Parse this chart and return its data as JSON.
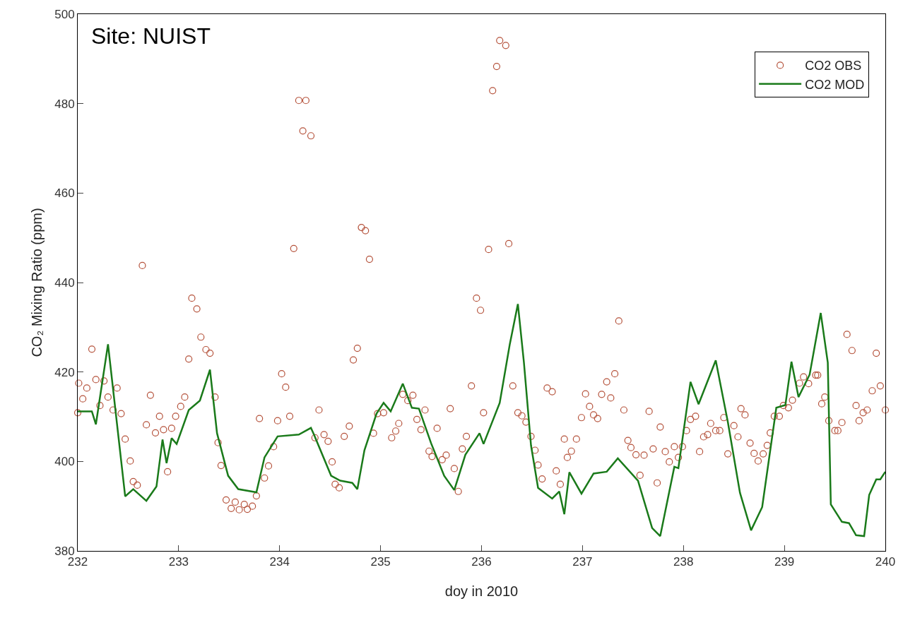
{
  "chart_data": {
    "type": "scatter",
    "xlabel": "doy in 2010",
    "ylabel": "CO₂ Mixing Ratio (ppm)",
    "xlim": [
      232,
      240
    ],
    "ylim": [
      380,
      500
    ],
    "xticks": [
      232,
      233,
      234,
      235,
      236,
      237,
      238,
      239,
      240
    ],
    "yticks": [
      380,
      400,
      420,
      440,
      460,
      480,
      500
    ],
    "legend": "top right",
    "annotations": [
      "Site: NUIST"
    ],
    "series": [
      {
        "name": "CO2 OBS",
        "marker": "circle",
        "color": "#b5523b",
        "x": [
          232.0,
          232.01,
          232.05,
          232.09,
          232.14,
          232.18,
          232.22,
          232.26,
          232.3,
          232.35,
          232.39,
          232.43,
          232.47,
          232.52,
          232.55,
          232.59,
          232.64,
          232.68,
          232.72,
          232.77,
          232.81,
          232.85,
          232.89,
          232.93,
          232.97,
          233.02,
          233.06,
          233.1,
          233.13,
          233.18,
          233.22,
          233.27,
          233.31,
          233.36,
          233.39,
          233.42,
          233.47,
          233.52,
          233.56,
          233.6,
          233.65,
          233.68,
          233.73,
          233.77,
          233.8,
          233.85,
          233.89,
          233.94,
          233.98,
          234.02,
          234.06,
          234.1,
          234.14,
          234.19,
          234.26,
          234.23,
          234.31,
          234.35,
          234.39,
          234.44,
          234.48,
          234.52,
          234.55,
          234.59,
          234.64,
          234.69,
          234.73,
          234.77,
          234.81,
          234.85,
          234.89,
          234.93,
          234.97,
          235.03,
          235.11,
          235.15,
          235.18,
          235.22,
          235.27,
          235.32,
          235.36,
          235.4,
          235.44,
          235.48,
          235.51,
          235.56,
          235.61,
          235.65,
          235.69,
          235.73,
          235.77,
          235.81,
          235.85,
          235.9,
          235.95,
          235.99,
          236.02,
          236.07,
          236.11,
          236.15,
          236.18,
          236.24,
          236.27,
          236.31,
          236.36,
          236.4,
          236.44,
          236.49,
          236.53,
          236.56,
          236.6,
          236.65,
          236.7,
          236.74,
          236.78,
          236.82,
          236.85,
          236.89,
          236.94,
          236.99,
          237.03,
          237.07,
          237.11,
          237.15,
          237.19,
          237.24,
          237.28,
          237.32,
          237.36,
          237.41,
          237.45,
          237.48,
          237.53,
          237.57,
          237.61,
          237.66,
          237.7,
          237.74,
          237.77,
          237.82,
          237.86,
          237.91,
          237.95,
          237.99,
          238.03,
          238.07,
          238.12,
          238.16,
          238.2,
          238.24,
          238.27,
          238.32,
          238.36,
          238.4,
          238.44,
          238.5,
          238.54,
          238.57,
          238.61,
          238.66,
          238.7,
          238.74,
          238.79,
          238.83,
          238.86,
          238.9,
          238.95,
          238.99,
          239.04,
          239.08,
          239.15,
          239.19,
          239.24,
          239.31,
          239.33,
          239.37,
          239.4,
          239.44,
          239.5,
          239.53,
          239.57,
          239.62,
          239.67,
          239.71,
          239.74,
          239.78,
          239.82,
          239.87,
          239.91,
          239.95,
          240.0
        ],
        "values": [
          410.9,
          417.5,
          414.0,
          416.4,
          425.1,
          418.3,
          412.5,
          418.0,
          414.4,
          411.5,
          416.4,
          410.7,
          405.0,
          400.1,
          395.5,
          394.7,
          443.8,
          408.2,
          414.8,
          406.4,
          410.1,
          407.1,
          397.7,
          407.4,
          410.1,
          412.3,
          414.4,
          422.9,
          436.5,
          434.1,
          427.8,
          425.0,
          424.2,
          414.4,
          404.2,
          399.1,
          391.4,
          389.5,
          390.9,
          389.2,
          390.4,
          389.3,
          390.0,
          392.3,
          409.6,
          396.3,
          399.0,
          403.3,
          409.1,
          419.6,
          416.6,
          410.1,
          447.6,
          480.7,
          480.7,
          473.9,
          472.8,
          405.3,
          411.5,
          406.0,
          404.5,
          399.9,
          394.9,
          394.1,
          405.6,
          407.9,
          422.7,
          425.3,
          452.3,
          451.6,
          445.2,
          406.3,
          410.7,
          410.9,
          405.3,
          406.8,
          408.5,
          415.0,
          413.6,
          414.8,
          409.4,
          407.1,
          411.5,
          402.3,
          401.1,
          407.4,
          400.4,
          401.4,
          411.8,
          398.4,
          393.3,
          402.8,
          405.6,
          416.9,
          436.5,
          433.8,
          410.9,
          447.4,
          482.9,
          488.3,
          494.1,
          493.0,
          448.7,
          416.9,
          410.9,
          410.2,
          408.8,
          405.6,
          402.5,
          399.2,
          396.1,
          416.4,
          415.6,
          397.9,
          394.9,
          405.0,
          400.9,
          402.3,
          405.0,
          409.8,
          415.1,
          412.3,
          410.4,
          409.6,
          415.0,
          417.8,
          414.2,
          419.6,
          431.4,
          411.5,
          404.7,
          403.1,
          401.5,
          396.9,
          401.4,
          411.2,
          402.8,
          395.2,
          407.7,
          402.2,
          399.9,
          403.3,
          400.9,
          403.3,
          406.9,
          409.4,
          410.1,
          402.2,
          405.5,
          406.0,
          408.5,
          406.9,
          406.9,
          409.8,
          401.7,
          408.0,
          405.5,
          411.8,
          410.4,
          404.1,
          401.8,
          400.1,
          401.7,
          403.6,
          406.4,
          410.1,
          410.1,
          412.5,
          412.0,
          413.7,
          417.5,
          418.9,
          417.4,
          419.3,
          419.3,
          412.9,
          414.4,
          409.1,
          406.9,
          406.9,
          408.7,
          428.4,
          424.8,
          412.5,
          409.1,
          410.9,
          411.5,
          415.8,
          424.2,
          416.9,
          411.5
        ]
      },
      {
        "name": "CO2 MOD",
        "type": "line",
        "marker": "none",
        "line_style": "solid",
        "color": "#1a7a1a",
        "x": [
          232.0,
          232.14,
          232.18,
          232.3,
          232.47,
          232.55,
          232.68,
          232.78,
          232.84,
          232.88,
          232.93,
          232.98,
          233.1,
          233.21,
          233.31,
          233.38,
          233.49,
          233.59,
          233.77,
          233.85,
          233.98,
          234.19,
          234.31,
          234.34,
          234.51,
          234.6,
          234.72,
          234.77,
          234.84,
          234.96,
          235.03,
          235.1,
          235.22,
          235.31,
          235.38,
          235.5,
          235.63,
          235.73,
          235.84,
          235.98,
          236.02,
          236.18,
          236.28,
          236.36,
          236.42,
          236.49,
          236.56,
          236.7,
          236.77,
          236.82,
          236.87,
          236.99,
          237.11,
          237.24,
          237.35,
          237.55,
          237.69,
          237.77,
          237.91,
          237.95,
          238.07,
          238.15,
          238.32,
          238.44,
          238.56,
          238.67,
          238.78,
          238.92,
          239.01,
          239.07,
          239.14,
          239.25,
          239.36,
          239.43,
          239.46,
          239.57,
          239.64,
          239.71,
          239.79,
          239.84,
          239.91,
          239.95,
          240.0
        ],
        "values": [
          411.2,
          411.2,
          408.3,
          426.2,
          392.2,
          393.8,
          391.2,
          394.4,
          404.9,
          399.6,
          405.2,
          403.9,
          411.5,
          413.6,
          420.5,
          406.3,
          396.8,
          393.8,
          393.1,
          400.9,
          405.6,
          406.0,
          407.5,
          406.0,
          396.8,
          395.7,
          395.2,
          393.8,
          402.5,
          410.7,
          413.1,
          411.2,
          417.4,
          412.0,
          411.8,
          404.1,
          396.8,
          393.6,
          401.5,
          406.3,
          403.9,
          413.1,
          426.2,
          435.2,
          422.1,
          403.6,
          394.1,
          391.7,
          393.3,
          388.2,
          397.6,
          392.8,
          397.3,
          397.7,
          400.7,
          395.7,
          385.1,
          383.3,
          398.8,
          398.5,
          417.8,
          412.8,
          422.6,
          408.8,
          393.0,
          384.6,
          389.8,
          412.0,
          412.6,
          422.3,
          414.4,
          419.4,
          433.2,
          422.1,
          390.4,
          386.5,
          386.2,
          383.5,
          383.3,
          392.5,
          396.0,
          396.0,
          397.7
        ]
      }
    ]
  }
}
